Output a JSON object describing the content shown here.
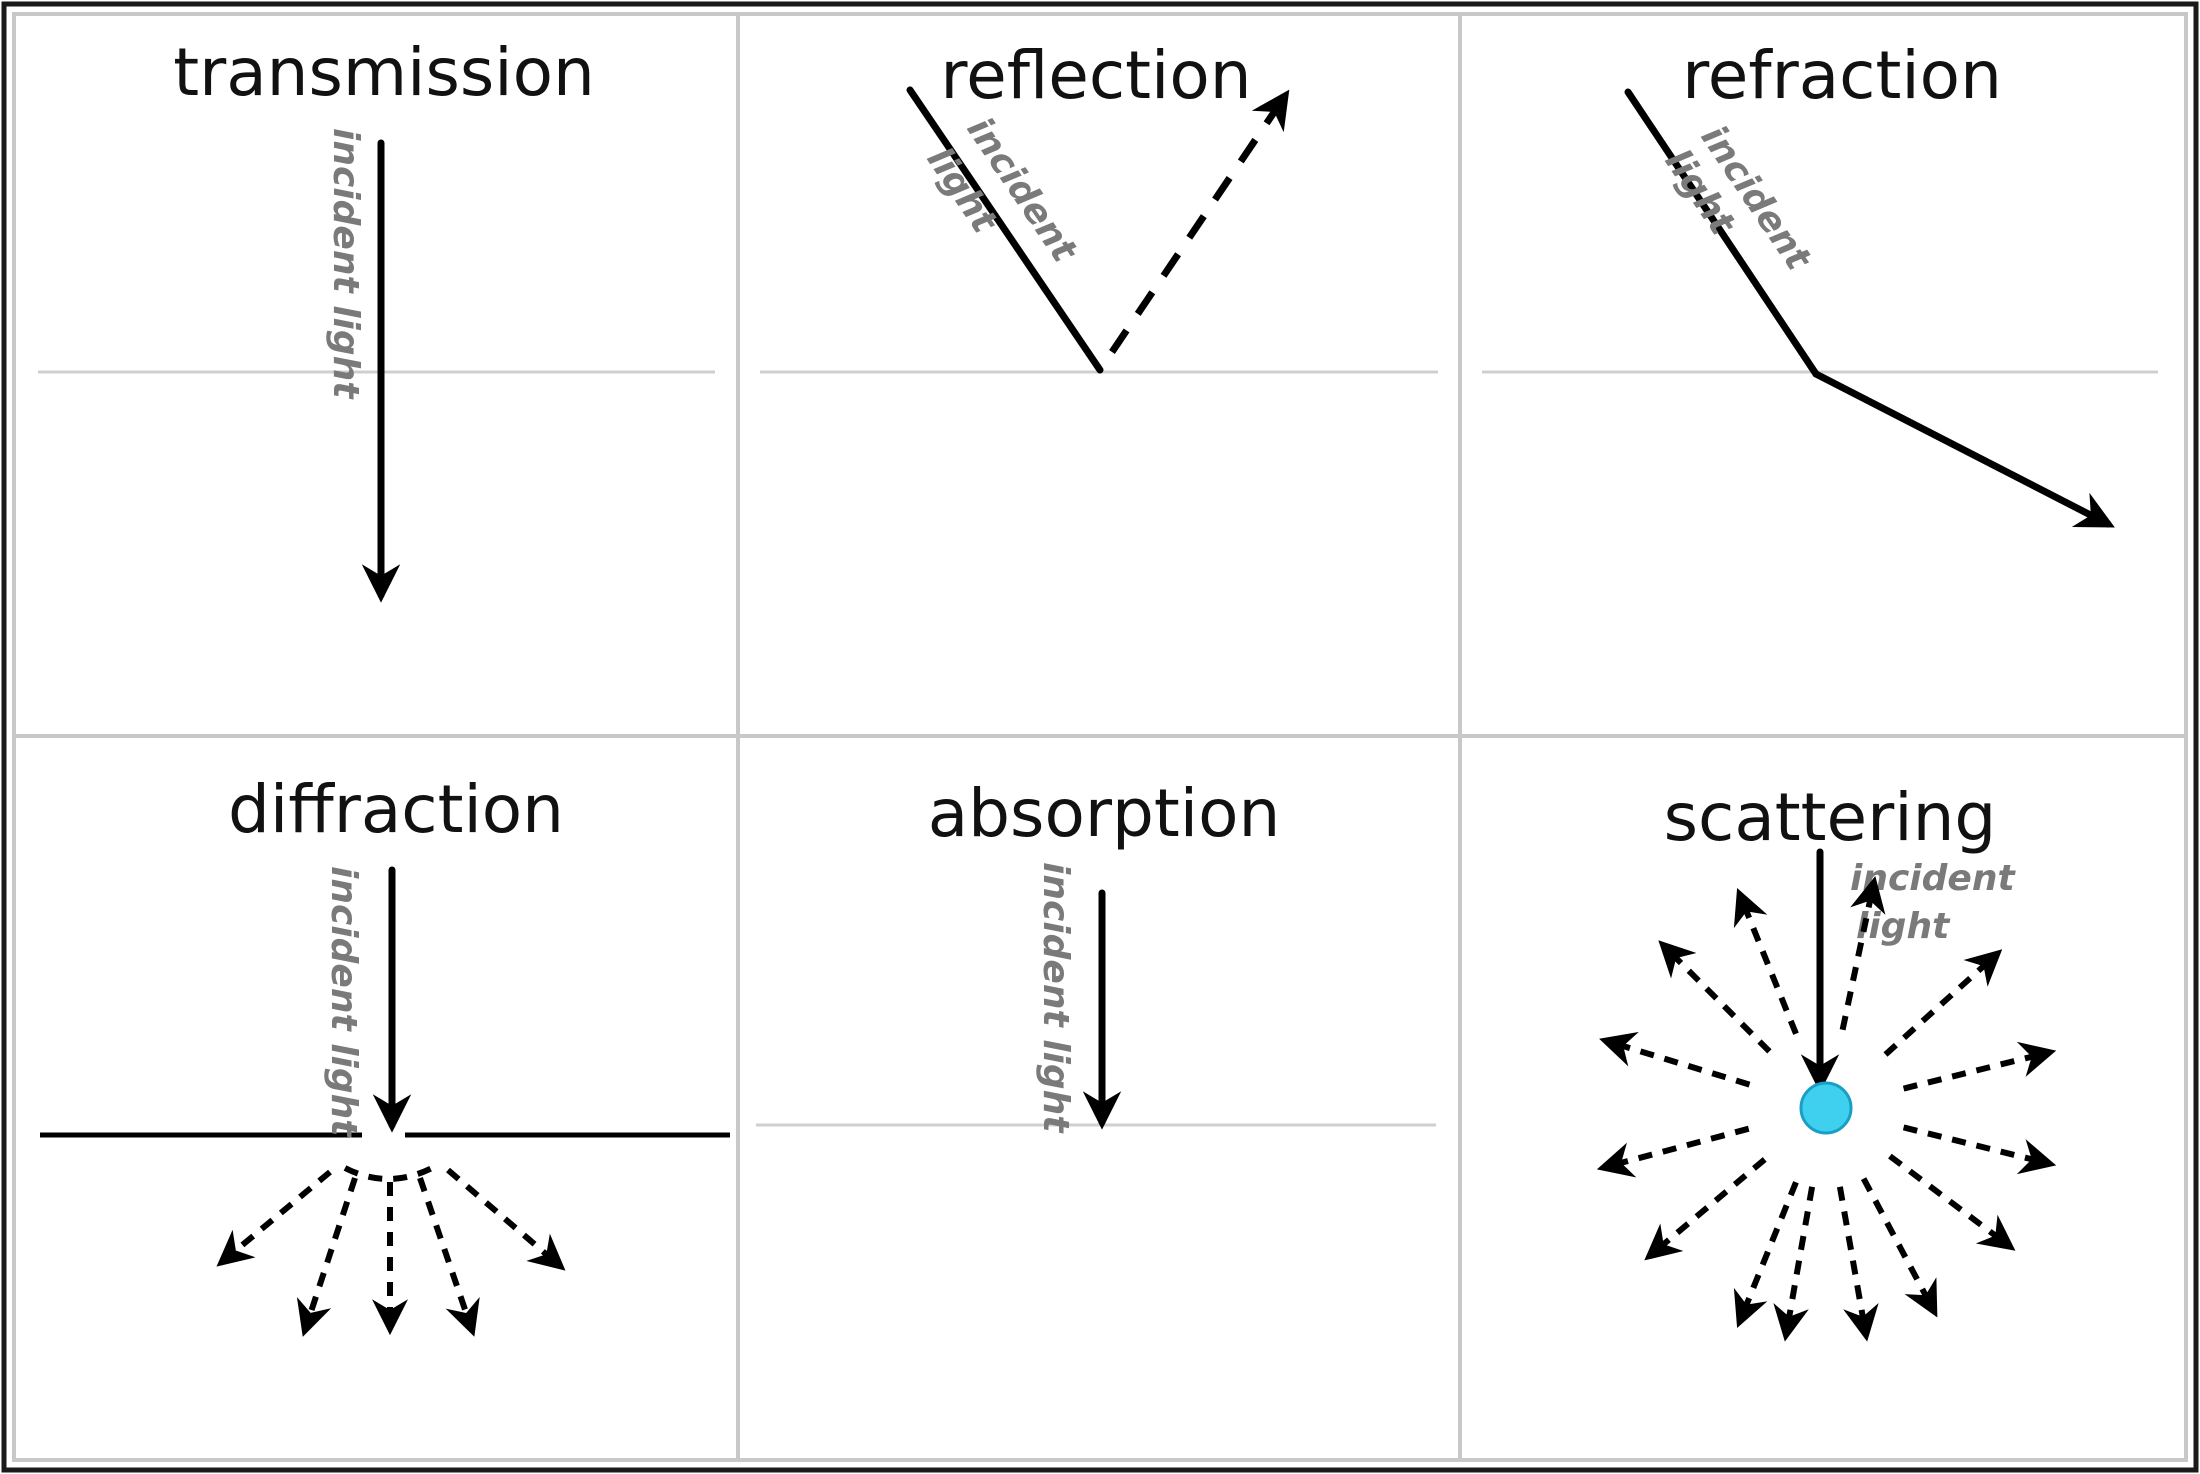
{
  "panels": [
    {
      "id": "transmission",
      "title": "transmission",
      "incident_label": "incident light"
    },
    {
      "id": "reflection",
      "title": "reflection",
      "incident_label": [
        "incident",
        "light"
      ]
    },
    {
      "id": "refraction",
      "title": "refraction",
      "incident_label": [
        "incident",
        "light"
      ]
    },
    {
      "id": "diffraction",
      "title": "diffraction",
      "incident_label": "incident light"
    },
    {
      "id": "absorption",
      "title": "absorption",
      "incident_label": "incident light"
    },
    {
      "id": "scattering",
      "title": "scattering",
      "incident_label": [
        "incident",
        "light"
      ]
    }
  ],
  "colors": {
    "ray": "#000000",
    "label": "#7a7a7a",
    "interface": "#cfcfcf",
    "particle": "#3fd0f0",
    "particle_edge": "#1a9fc4"
  }
}
